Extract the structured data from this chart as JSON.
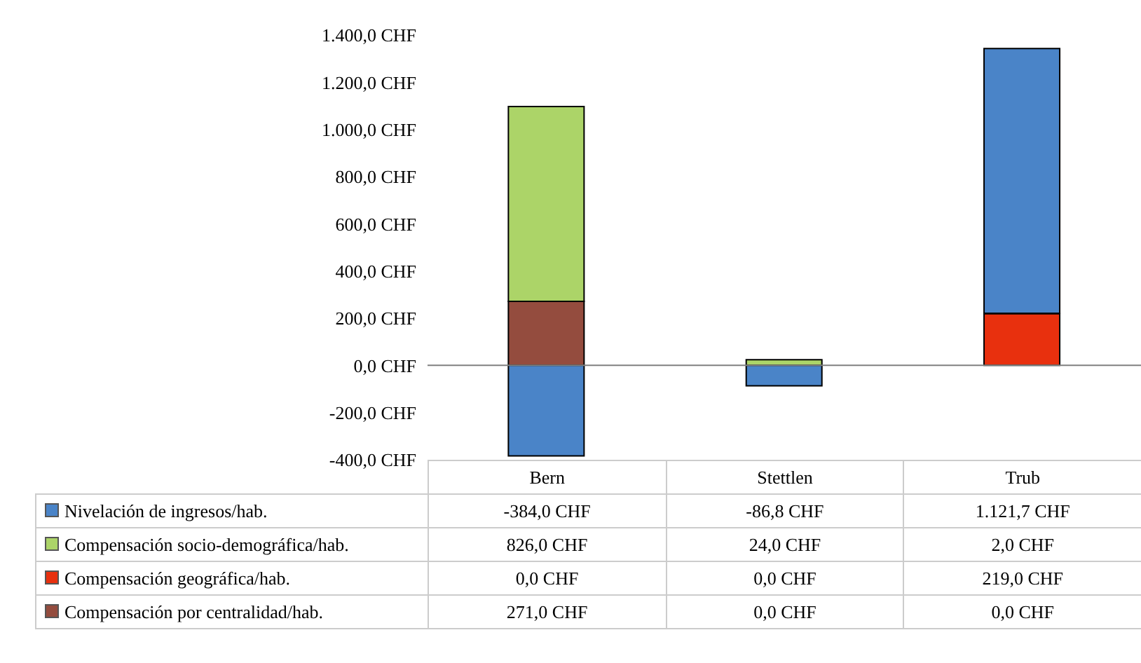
{
  "chart_data": {
    "type": "bar",
    "stacked": true,
    "categories": [
      "Bern",
      "Stettlen",
      "Trub"
    ],
    "series": [
      {
        "name": "Compensación por centralidad/hab.",
        "color": "#944c3e",
        "values": [
          271.0,
          0.0,
          0.0
        ],
        "value_labels": [
          "271,0 CHF",
          "0,0 CHF",
          "0,0 CHF"
        ]
      },
      {
        "name": "Compensación geográfica/hab.",
        "color": "#e8300e",
        "values": [
          0.0,
          0.0,
          219.0
        ],
        "value_labels": [
          "0,0 CHF",
          "0,0 CHF",
          "219,0 CHF"
        ]
      },
      {
        "name": "Compensación socio-demográfica/hab.",
        "color": "#acd468",
        "values": [
          826.0,
          24.0,
          2.0
        ],
        "value_labels": [
          "826,0 CHF",
          "24,0 CHF",
          "2,0 CHF"
        ]
      },
      {
        "name": "Nivelación de ingresos/hab.",
        "color": "#4a84c8",
        "values": [
          -384.0,
          -86.8,
          1121.7
        ],
        "value_labels": [
          "-384,0 CHF",
          "-86,8 CHF",
          "1.121,7 CHF"
        ]
      }
    ],
    "ylim": [
      -400,
      1400
    ],
    "yticks": [
      {
        "value": -400,
        "label": "-400,0 CHF"
      },
      {
        "value": -200,
        "label": "-200,0 CHF"
      },
      {
        "value": 0,
        "label": "0,0 CHF"
      },
      {
        "value": 200,
        "label": "200,0 CHF"
      },
      {
        "value": 400,
        "label": "400,0 CHF"
      },
      {
        "value": 600,
        "label": "600,0 CHF"
      },
      {
        "value": 800,
        "label": "800,0 CHF"
      },
      {
        "value": 1000,
        "label": "1.000,0 CHF"
      },
      {
        "value": 1200,
        "label": "1.200,0 CHF"
      },
      {
        "value": 1400,
        "label": "1.400,0 CHF"
      }
    ],
    "ref_lines": [
      {
        "axis": "y",
        "value": 0,
        "color": "#808080"
      }
    ],
    "legend": "bottom"
  }
}
